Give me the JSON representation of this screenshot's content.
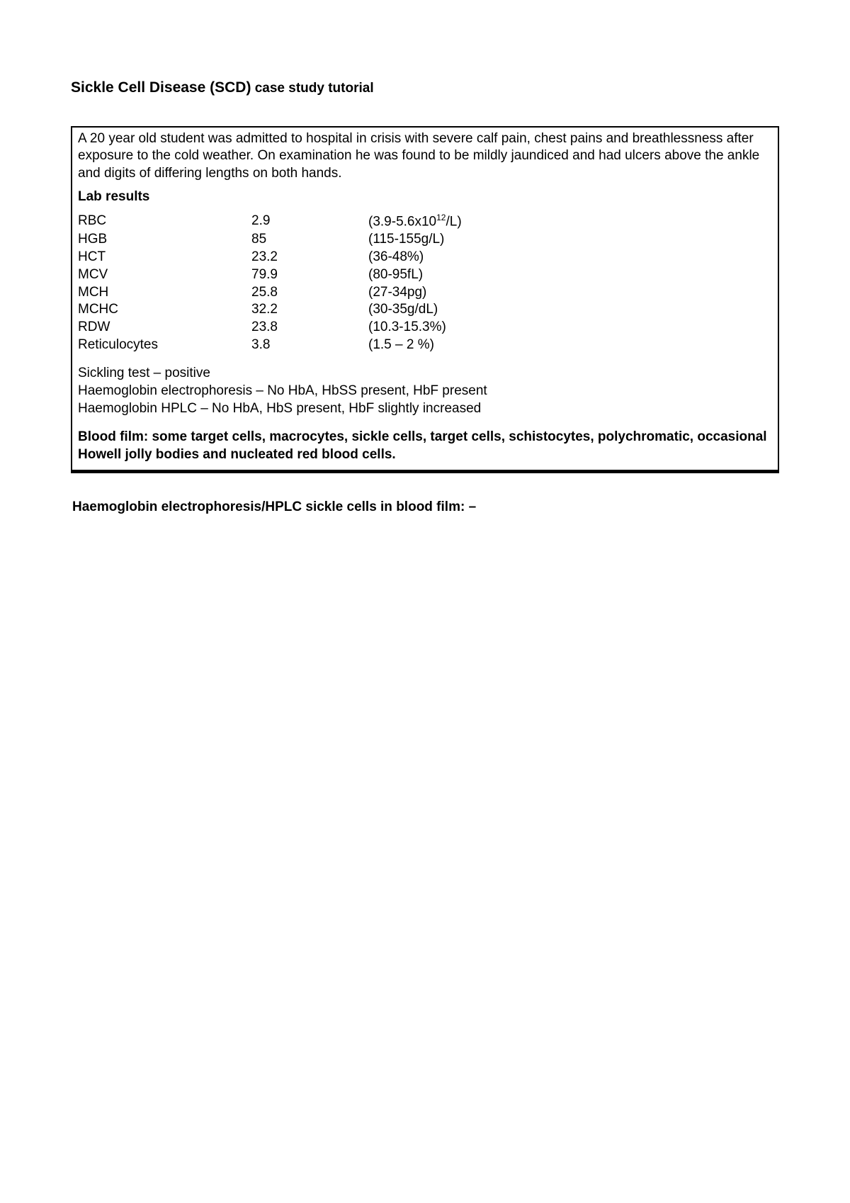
{
  "title": {
    "main": "Sickle Cell Disease (SCD)",
    "suffix": " case study tutorial"
  },
  "intro": "A 20 year old student was admitted to hospital in crisis with severe calf pain, chest pains and breathlessness after exposure to the cold weather.  On examination he was found to be mildly jaundiced and had ulcers above the ankle and digits of differing lengths on both hands.",
  "labHeader": "Lab results",
  "labRows": [
    {
      "label": "RBC",
      "value": "2.9",
      "range_prefix": "(3.9-5.6x10",
      "range_sup": "12",
      "range_suffix": "/L)"
    },
    {
      "label": "HGB",
      "value": "85",
      "range": "(115-155g/L)"
    },
    {
      "label": "HCT",
      "value": "23.2",
      "range": "(36-48%)"
    },
    {
      "label": "MCV",
      "value": "79.9",
      "range": "(80-95fL)"
    },
    {
      "label": "MCH",
      "value": "25.8",
      "range": "(27-34pg)"
    },
    {
      "label": "MCHC",
      "value": "32.2",
      "range": "(30-35g/dL)"
    },
    {
      "label": "RDW",
      "value": "23.8",
      "range": "(10.3-15.3%)"
    },
    {
      "label": "Reticulocytes",
      "value": "3.8",
      "range": "(1.5 – 2 %)"
    }
  ],
  "tests": [
    "Sickling test – positive",
    "Haemoglobin electrophoresis – No HbA, HbSS present, HbF present",
    "Haemoglobin HPLC – No HbA, HbS present, HbF slightly increased"
  ],
  "bloodFilm": "Blood film: some target cells, macrocytes, sickle cells, target cells, schistocytes, polychromatic, occasional Howell jolly bodies and nucleated red blood cells.",
  "footer": "Haemoglobin electrophoresis/HPLC sickle cells in blood film: –"
}
